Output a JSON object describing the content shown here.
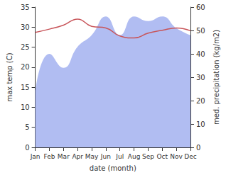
{
  "chart_data": {
    "type": "line",
    "xlabel": "date (month)",
    "ylabel": "max temp (C)",
    "y2label": "med. precipitation (kg/m2)",
    "categories": [
      "Jan",
      "Feb",
      "Mar",
      "Apr",
      "May",
      "Jun",
      "Jul",
      "Aug",
      "Sep",
      "Oct",
      "Nov",
      "Dec"
    ],
    "ylim": [
      0,
      35
    ],
    "yticks": [
      0,
      5,
      10,
      15,
      20,
      25,
      30,
      35
    ],
    "y2lim": [
      0,
      60
    ],
    "y2ticks": [
      0,
      10,
      20,
      30,
      40,
      50,
      60
    ],
    "grid": false,
    "series": [
      {
        "type": "area",
        "axis": "y2",
        "color": "#b1bdf2",
        "values": [
          24,
          40,
          34,
          43,
          48,
          56,
          48,
          56,
          54,
          56,
          51,
          48
        ]
      },
      {
        "type": "line",
        "color": "#c8555a",
        "values": [
          28.7,
          29.5,
          30.5,
          32,
          30.2,
          29.8,
          27.8,
          27.3,
          28.5,
          29.2,
          29.8,
          29.1
        ]
      }
    ]
  }
}
